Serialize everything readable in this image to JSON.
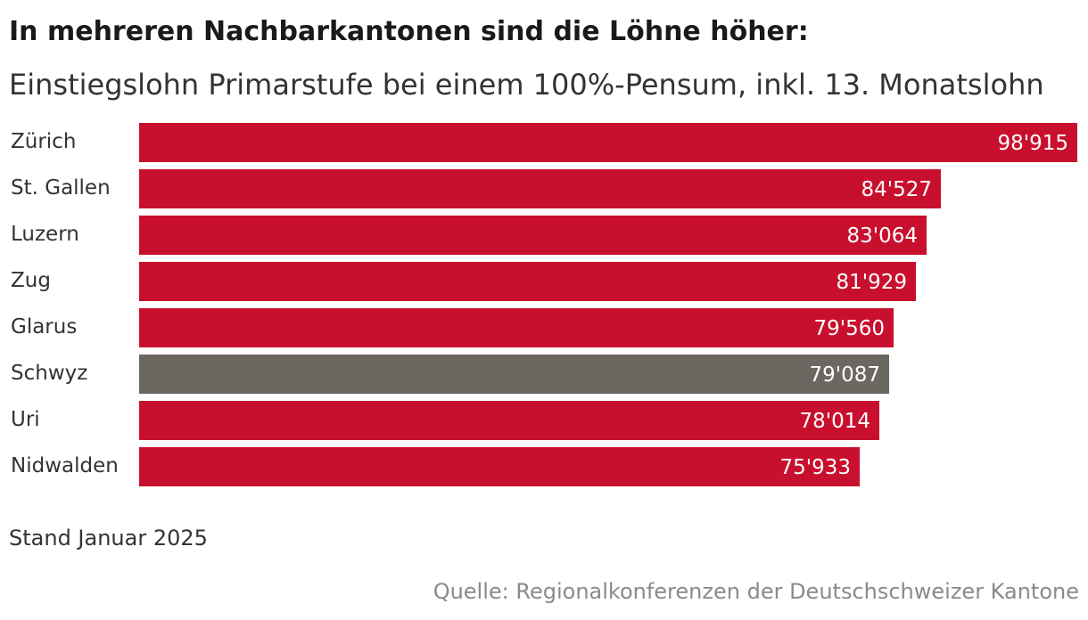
{
  "chart_data": {
    "type": "bar",
    "orientation": "horizontal",
    "title": "In mehreren Nachbarkantonen sind die Löhne höher:",
    "subtitle": "Einstiegslohn Primarstufe bei einem 100%-Pensum, inkl. 13. Monatslohn",
    "categories": [
      "Zürich",
      "St. Gallen",
      "Luzern",
      "Zug",
      "Glarus",
      "Schwyz",
      "Uri",
      "Nidwalden"
    ],
    "values": [
      98915,
      84527,
      83064,
      81929,
      79560,
      79087,
      78014,
      75933
    ],
    "value_labels": [
      "98'915",
      "84'527",
      "83'064",
      "81'929",
      "79'560",
      "79'087",
      "78'014",
      "75'933"
    ],
    "highlight": "Schwyz",
    "xlim": [
      0,
      98915
    ],
    "colors": {
      "default": "#c8102e",
      "highlight": "#6b6861",
      "value_label": "#ffffff",
      "category_label": "#333333"
    },
    "note": "Stand Januar 2025",
    "source": "Quelle: Regionalkonferenzen der Deutschschweizer Kantone"
  }
}
